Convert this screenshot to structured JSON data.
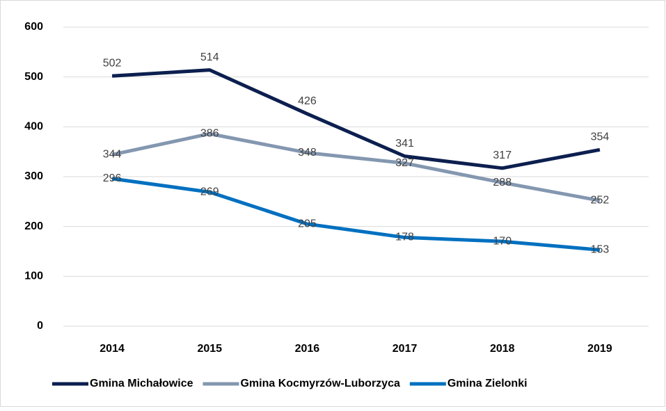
{
  "chart_data": {
    "type": "line",
    "categories": [
      "2014",
      "2015",
      "2016",
      "2017",
      "2018",
      "2019"
    ],
    "series": [
      {
        "name": "Gmina Michałowice",
        "color": "#0c1f4f",
        "values": [
          502,
          514,
          426,
          341,
          317,
          354
        ]
      },
      {
        "name": "Gmina Kocmyrzów-Luborzyca",
        "color": "#8497b0",
        "values": [
          344,
          386,
          348,
          327,
          288,
          252
        ]
      },
      {
        "name": "Gmina Zielonki",
        "color": "#0070c0",
        "values": [
          296,
          269,
          205,
          178,
          170,
          153
        ]
      }
    ],
    "ylim": [
      0,
      600
    ],
    "yticks": [
      0,
      100,
      200,
      300,
      400,
      500,
      600
    ],
    "grid": true,
    "legend": "bottom"
  }
}
